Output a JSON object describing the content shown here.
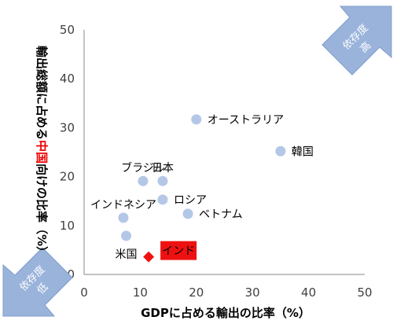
{
  "chart_data": {
    "type": "scatter",
    "xlabel": "GDPに占める輸出の比率（%）",
    "ylabel": {
      "before": "輸出総額に占める",
      "highlight": "中国",
      "after": "向けの比率（%）"
    },
    "xlim": [
      0,
      50
    ],
    "ylim": [
      0,
      50
    ],
    "x_ticks": [
      0,
      10,
      20,
      30,
      40,
      50
    ],
    "y_ticks": [
      0,
      10,
      20,
      30,
      40,
      50
    ],
    "grid": false,
    "points": [
      {
        "label": "オーストラリア",
        "x": 20,
        "y": 31.7,
        "label_pos": "right"
      },
      {
        "label": "韓国",
        "x": 35,
        "y": 25.2,
        "label_pos": "right"
      },
      {
        "label": "ブラジル",
        "x": 10.5,
        "y": 19.1,
        "label_pos": "above"
      },
      {
        "label": "日本",
        "x": 14,
        "y": 19.1,
        "label_pos": "above"
      },
      {
        "label": "ロシア",
        "x": 14,
        "y": 15.3,
        "label_pos": "right"
      },
      {
        "label": "インドネシア",
        "x": 7,
        "y": 11.6,
        "label_pos": "above"
      },
      {
        "label": "ベトナム",
        "x": 18.5,
        "y": 12.4,
        "label_pos": "right"
      },
      {
        "label": "米国",
        "x": 7.5,
        "y": 7.9,
        "label_pos": "below"
      }
    ],
    "highlight_point": {
      "label": "インド",
      "x": 11.5,
      "y": 3.6
    },
    "colors": {
      "point": "#b4c7e7",
      "highlight": "#ee1111",
      "arrow": "#9ab3db",
      "ylabel_highlight": "#ee0000"
    },
    "annotations": {
      "high": {
        "line1": "依存度",
        "line2": "高"
      },
      "low": {
        "line1": "依存度",
        "line2": "低"
      }
    }
  }
}
